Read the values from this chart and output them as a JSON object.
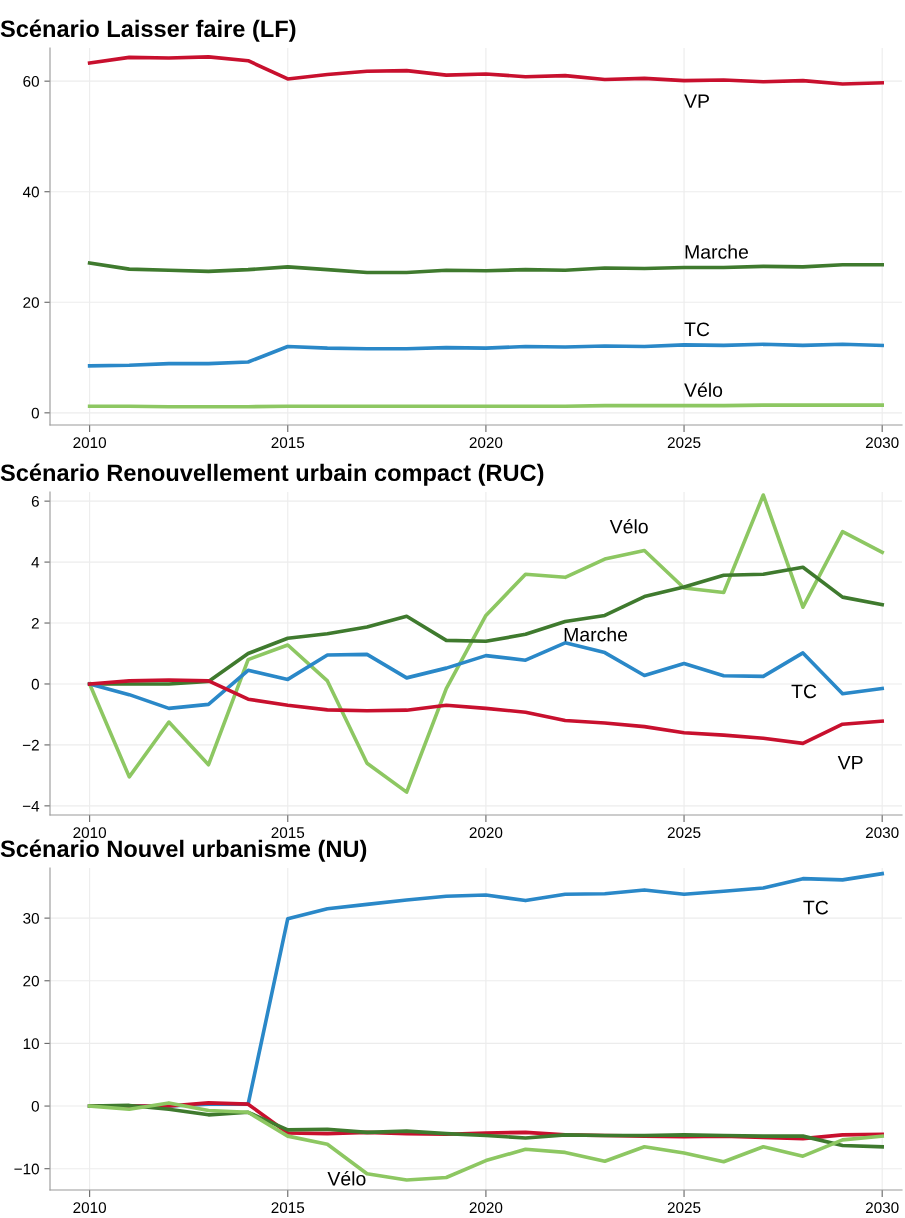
{
  "chart_data": [
    {
      "type": "line",
      "title": "Scénario Laisser faire (LF)",
      "x": [
        2010,
        2011,
        2012,
        2013,
        2014,
        2015,
        2016,
        2017,
        2018,
        2019,
        2020,
        2021,
        2022,
        2023,
        2024,
        2025,
        2026,
        2027,
        2028,
        2029,
        2030
      ],
      "xlim": [
        2009,
        2030.5
      ],
      "xticks": [
        2010,
        2015,
        2020,
        2025,
        2030
      ],
      "ylim": [
        -2.2,
        66
      ],
      "yticks": [
        0,
        20,
        40,
        60
      ],
      "grid": true,
      "legend": false,
      "series": [
        {
          "color": "#c8102e",
          "values": [
            63.3,
            64.3,
            64.2,
            64.4,
            63.7,
            60.4,
            61.2,
            61.8,
            61.9,
            61.1,
            61.3,
            60.8,
            61.0,
            60.3,
            60.5,
            60.1,
            60.2,
            59.9,
            60.1,
            59.5,
            59.7
          ]
        },
        {
          "color": "#3f7a2e",
          "values": [
            27.1,
            26.0,
            25.8,
            25.6,
            25.9,
            26.4,
            25.9,
            25.4,
            25.4,
            25.8,
            25.7,
            25.9,
            25.8,
            26.2,
            26.1,
            26.3,
            26.3,
            26.5,
            26.4,
            26.8,
            26.8
          ]
        },
        {
          "color": "#2a88c8",
          "values": [
            8.5,
            8.6,
            8.9,
            8.9,
            9.2,
            12.0,
            11.7,
            11.6,
            11.6,
            11.8,
            11.7,
            12.0,
            11.9,
            12.1,
            12.0,
            12.3,
            12.2,
            12.4,
            12.2,
            12.4,
            12.2
          ]
        },
        {
          "color": "#8dc762",
          "values": [
            1.2,
            1.2,
            1.1,
            1.1,
            1.1,
            1.2,
            1.2,
            1.2,
            1.2,
            1.2,
            1.2,
            1.2,
            1.2,
            1.3,
            1.3,
            1.3,
            1.3,
            1.4,
            1.4,
            1.4,
            1.4
          ]
        }
      ],
      "annotations": [
        {
          "text": "VP",
          "x": 2025,
          "y": 60.1
        },
        {
          "text": "Marche",
          "x": 2025,
          "y": 26.3
        },
        {
          "text": "TC",
          "x": 2025,
          "y": 12.3
        },
        {
          "text": "Vélo",
          "x": 2025,
          "y": 1.3
        }
      ]
    },
    {
      "type": "line",
      "title": "Scénario Renouvellement urbain compact (RUC)",
      "x": [
        2010,
        2011,
        2012,
        2013,
        2014,
        2015,
        2016,
        2017,
        2018,
        2019,
        2020,
        2021,
        2022,
        2023,
        2024,
        2025,
        2026,
        2027,
        2028,
        2029,
        2030
      ],
      "xlim": [
        2009,
        2030.5
      ],
      "xticks": [
        2010,
        2015,
        2020,
        2025,
        2030
      ],
      "ylim": [
        -4.3,
        6.3
      ],
      "yticks": [
        {
          "value": -4,
          "label": "−4"
        },
        {
          "value": -2,
          "label": "−2"
        },
        0,
        2,
        4,
        6
      ],
      "grid": true,
      "legend": false,
      "series": [
        {
          "color": "#8dc762",
          "values": [
            0,
            -3.05,
            -1.25,
            -2.65,
            0.8,
            1.28,
            0.1,
            -2.6,
            -3.55,
            -0.15,
            2.25,
            3.6,
            3.5,
            4.1,
            4.38,
            3.15,
            3.0,
            6.2,
            2.52,
            5.0,
            4.32
          ]
        },
        {
          "color": "#3f7a2e",
          "values": [
            0,
            0,
            0,
            0.08,
            1.0,
            1.5,
            1.65,
            1.87,
            2.22,
            1.43,
            1.4,
            1.63,
            2.05,
            2.25,
            2.87,
            3.18,
            3.57,
            3.6,
            3.83,
            2.85,
            2.6
          ]
        },
        {
          "color": "#2a88c8",
          "values": [
            0,
            -0.35,
            -0.8,
            -0.67,
            0.45,
            0.15,
            0.95,
            0.97,
            0.2,
            0.52,
            0.93,
            0.78,
            1.35,
            1.03,
            0.28,
            0.67,
            0.27,
            0.25,
            1.02,
            -0.32,
            -0.15
          ]
        },
        {
          "color": "#c8102e",
          "values": [
            0,
            0.1,
            0.13,
            0.1,
            -0.5,
            -0.7,
            -0.85,
            -0.88,
            -0.86,
            -0.7,
            -0.8,
            -0.93,
            -1.2,
            -1.28,
            -1.4,
            -1.6,
            -1.68,
            -1.78,
            -1.95,
            -1.32,
            -1.22
          ]
        }
      ],
      "annotations": [
        {
          "text": "Vélo",
          "x": 2024,
          "y": 4.38
        },
        {
          "text": "Marche",
          "x": 2023,
          "y": 2.25
        },
        {
          "text": "TC",
          "x": 2027,
          "y": 0.25
        },
        {
          "text": "VP",
          "x": 2028,
          "y": -1.95
        }
      ]
    },
    {
      "type": "line",
      "title": "Scénario Nouvel urbanisme (NU)",
      "x": [
        2010,
        2011,
        2012,
        2013,
        2014,
        2015,
        2016,
        2017,
        2018,
        2019,
        2020,
        2021,
        2022,
        2023,
        2024,
        2025,
        2026,
        2027,
        2028,
        2029,
        2030
      ],
      "xlim": [
        2009,
        2030.5
      ],
      "xticks": [
        2010,
        2015,
        2020,
        2025,
        2030
      ],
      "ylim": [
        -13.4,
        38
      ],
      "yticks": [
        {
          "value": -10,
          "label": "−10"
        },
        0,
        10,
        20,
        30
      ],
      "grid": true,
      "legend": false,
      "series": [
        {
          "color": "#2a88c8",
          "values": [
            0,
            0,
            0,
            0.3,
            0.3,
            29.9,
            31.5,
            32.2,
            32.9,
            33.5,
            33.7,
            32.8,
            33.8,
            33.9,
            34.5,
            33.8,
            34.3,
            34.8,
            36.3,
            36.1,
            37.1
          ]
        },
        {
          "color": "#c8102e",
          "values": [
            0,
            0,
            0,
            0.5,
            0.3,
            -4.3,
            -4.4,
            -4.2,
            -4.4,
            -4.5,
            -4.3,
            -4.2,
            -4.6,
            -4.7,
            -4.8,
            -4.9,
            -4.8,
            -5.0,
            -5.2,
            -4.6,
            -4.5
          ]
        },
        {
          "color": "#3f7a2e",
          "values": [
            0,
            0.1,
            -0.5,
            -1.4,
            -1.0,
            -3.8,
            -3.7,
            -4.2,
            -4.0,
            -4.4,
            -4.7,
            -5.1,
            -4.6,
            -4.7,
            -4.7,
            -4.6,
            -4.7,
            -4.8,
            -4.8,
            -6.3,
            -6.5
          ]
        },
        {
          "color": "#8dc762",
          "values": [
            0,
            -0.5,
            0.5,
            -0.7,
            -1.0,
            -4.8,
            -6.1,
            -10.8,
            -11.8,
            -11.4,
            -8.7,
            -6.9,
            -7.4,
            -8.8,
            -6.5,
            -7.5,
            -8.9,
            -6.5,
            -8.0,
            -5.4,
            -4.8
          ]
        }
      ],
      "annotations": [
        {
          "text": "TC",
          "x": 2028,
          "y": 36.3
        },
        {
          "text": "Vélo",
          "x": 2016,
          "y": -6.1
        }
      ]
    }
  ]
}
